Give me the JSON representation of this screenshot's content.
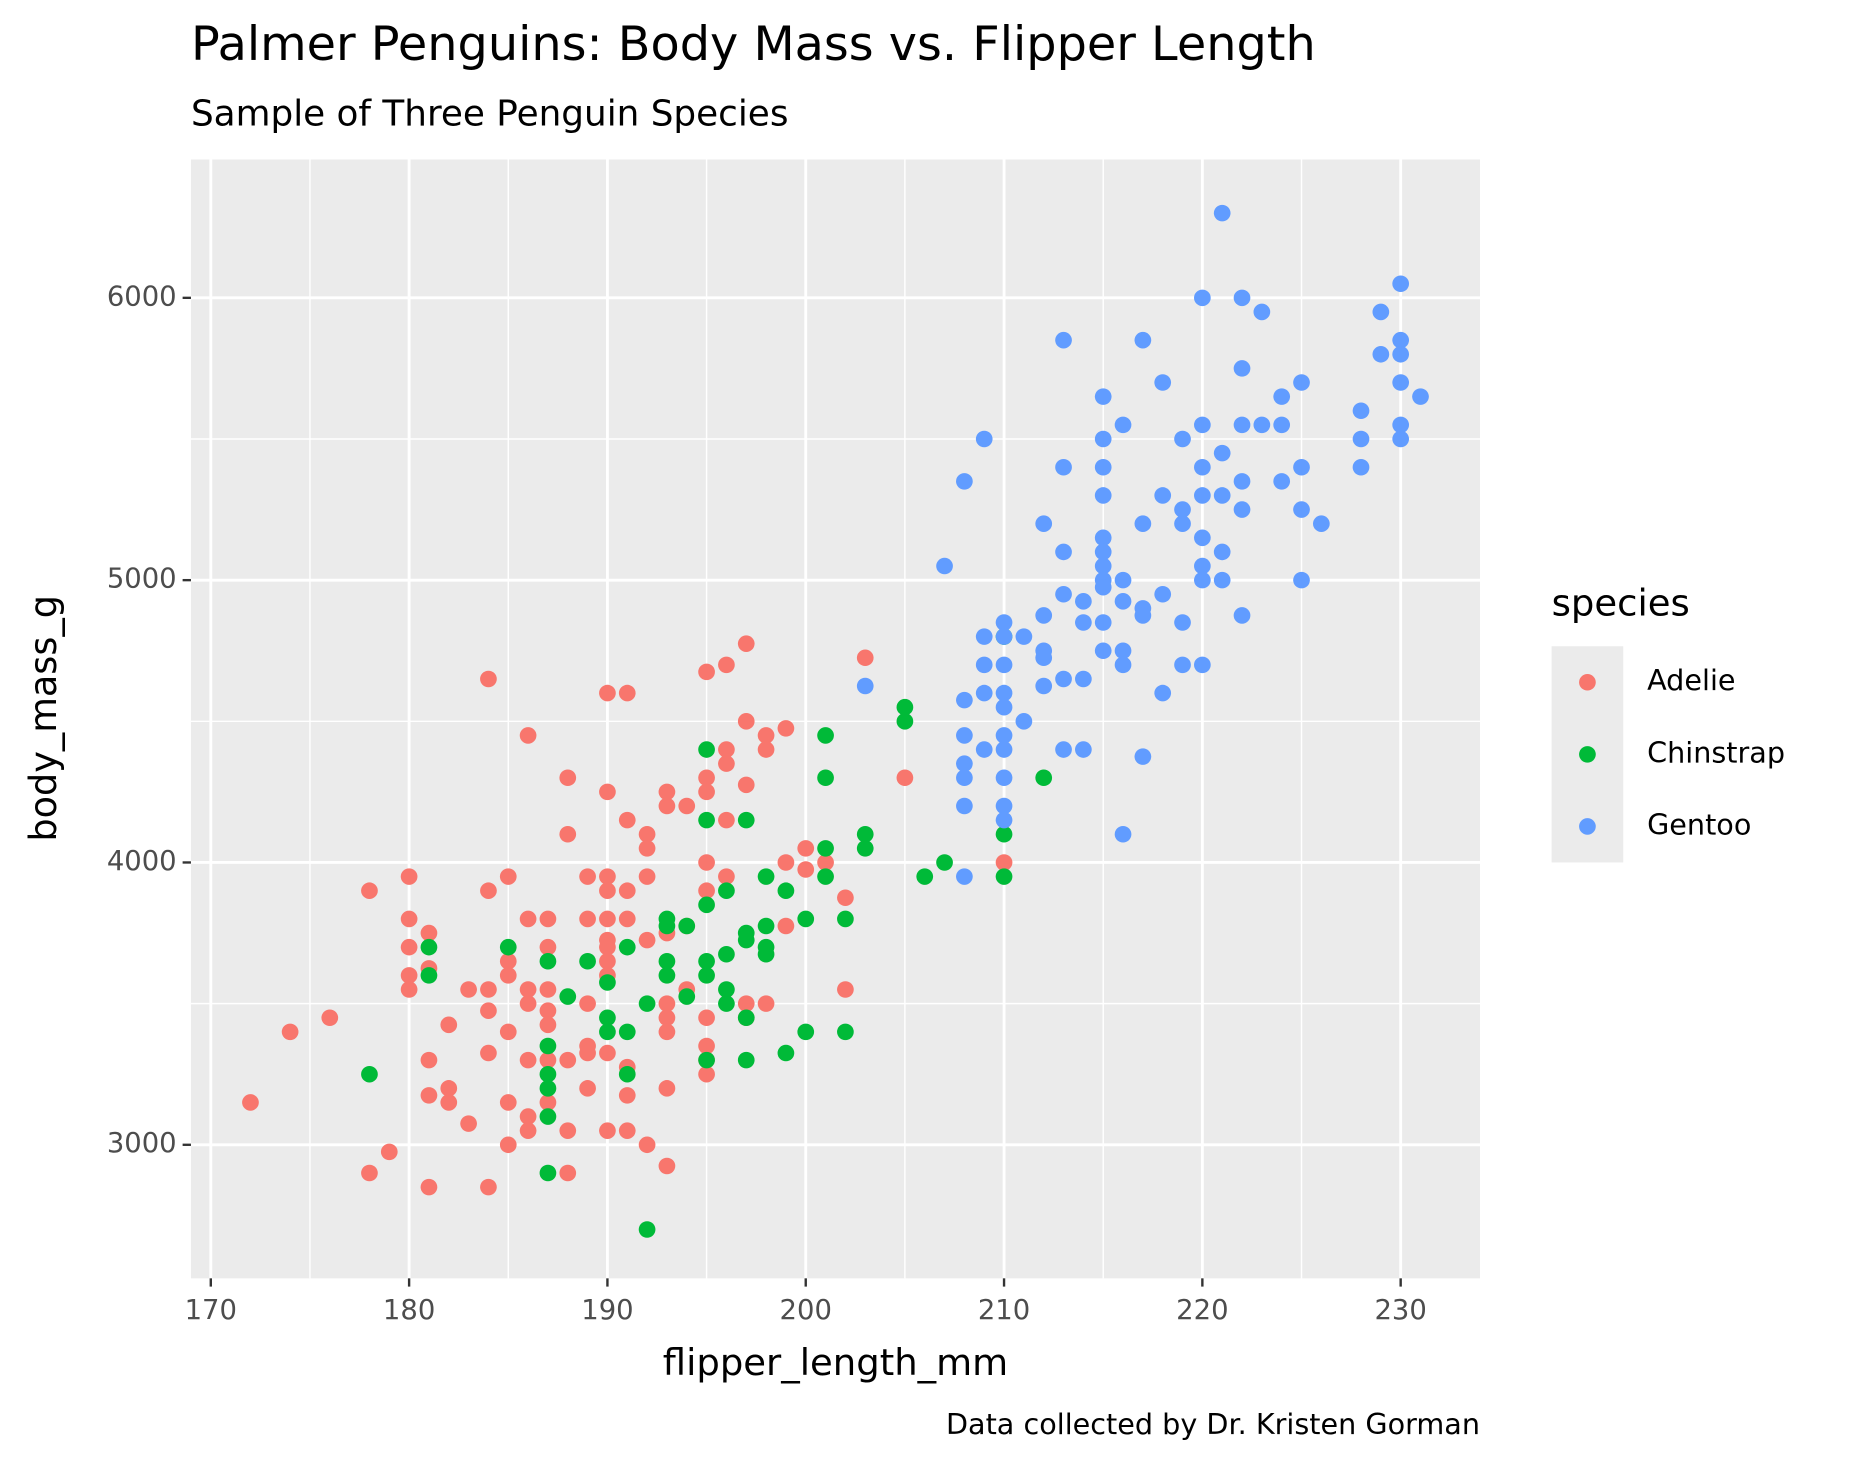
{
  "chart_data": {
    "type": "scatter",
    "title": "Palmer Penguins: Body Mass vs. Flipper Length",
    "subtitle": "Sample of Three Penguin Species",
    "x_label": "flipper_length_mm",
    "y_label": "body_mass_g",
    "caption": "Data collected by Dr. Kristen Gorman",
    "legend_title": "species",
    "legend_position": "right",
    "grid": true,
    "xlim": [
      169,
      234
    ],
    "ylim": [
      2527,
      6490
    ],
    "xticks": [
      170,
      180,
      190,
      200,
      210,
      220,
      230
    ],
    "yticks": [
      3000,
      4000,
      5000,
      6000
    ],
    "xminorticks": [
      175,
      185,
      195,
      205,
      215,
      225
    ],
    "yminorticks": [
      3500,
      4500,
      5500
    ],
    "series": [
      {
        "name": "Adelie",
        "color": "#f8766d",
        "x": [
          172,
          174,
          176,
          178,
          178,
          179,
          180,
          180,
          180,
          180,
          180,
          181,
          181,
          181,
          181,
          181,
          182,
          182,
          182,
          183,
          183,
          184,
          184,
          184,
          184,
          184,
          184,
          185,
          185,
          185,
          185,
          185,
          185,
          186,
          186,
          186,
          186,
          186,
          186,
          186,
          187,
          187,
          187,
          187,
          187,
          187,
          187,
          188,
          188,
          188,
          188,
          188,
          189,
          189,
          189,
          189,
          189,
          189,
          190,
          190,
          190,
          190,
          190,
          190,
          190,
          190,
          190,
          190,
          190,
          191,
          191,
          191,
          191,
          191,
          191,
          191,
          192,
          192,
          192,
          192,
          192,
          193,
          193,
          193,
          193,
          193,
          193,
          193,
          193,
          194,
          194,
          194,
          195,
          195,
          195,
          195,
          195,
          195,
          195,
          195,
          195,
          196,
          196,
          196,
          196,
          196,
          197,
          197,
          197,
          197,
          197,
          198,
          198,
          198,
          199,
          199,
          199,
          200,
          200,
          201,
          202,
          202,
          203,
          205,
          210
        ],
        "y": [
          3150,
          3400,
          3450,
          3900,
          2900,
          2975,
          3950,
          3800,
          3700,
          3600,
          3550,
          3750,
          3625,
          3300,
          3175,
          2850,
          3425,
          3200,
          3150,
          3550,
          3075,
          4650,
          3900,
          3550,
          3475,
          3325,
          2850,
          3950,
          3650,
          3600,
          3400,
          3150,
          3000,
          4450,
          3800,
          3550,
          3500,
          3300,
          3100,
          3050,
          3800,
          3700,
          3550,
          3475,
          3425,
          3300,
          3150,
          4300,
          4100,
          3300,
          3050,
          2900,
          3950,
          3800,
          3500,
          3350,
          3325,
          3200,
          4600,
          4250,
          3950,
          3900,
          3800,
          3725,
          3700,
          3650,
          3600,
          3325,
          3050,
          4600,
          4150,
          3900,
          3800,
          3275,
          3175,
          3050,
          4100,
          4050,
          3950,
          3725,
          3000,
          4250,
          4200,
          3750,
          3500,
          3450,
          3400,
          3200,
          2925,
          4200,
          3775,
          3550,
          4675,
          4300,
          4250,
          4000,
          3900,
          3450,
          3350,
          3300,
          3250,
          4700,
          4400,
          4350,
          4150,
          3950,
          4775,
          4500,
          4275,
          3500,
          3450,
          4450,
          4400,
          3500,
          4475,
          4000,
          3775,
          4050,
          3975,
          4000,
          3875,
          3550,
          4725,
          4300,
          4000
        ]
      },
      {
        "name": "Chinstrap",
        "color": "#00ba38",
        "x": [
          178,
          181,
          181,
          185,
          187,
          187,
          187,
          187,
          187,
          187,
          188,
          189,
          190,
          190,
          190,
          191,
          191,
          191,
          192,
          192,
          193,
          193,
          193,
          193,
          194,
          194,
          195,
          195,
          195,
          195,
          195,
          195,
          196,
          196,
          196,
          196,
          197,
          197,
          197,
          197,
          197,
          198,
          198,
          198,
          198,
          199,
          199,
          200,
          200,
          201,
          201,
          201,
          201,
          202,
          202,
          203,
          203,
          205,
          205,
          206,
          207,
          210,
          210,
          210,
          212
        ],
        "y": [
          3250,
          3700,
          3600,
          3700,
          3650,
          3350,
          3250,
          3200,
          3100,
          2900,
          3525,
          3650,
          3575,
          3450,
          3400,
          3700,
          3400,
          3250,
          3500,
          2700,
          3800,
          3775,
          3650,
          3600,
          3775,
          3525,
          4400,
          4150,
          3850,
          3650,
          3600,
          3300,
          3900,
          3675,
          3550,
          3500,
          4150,
          3750,
          3725,
          3450,
          3300,
          3950,
          3775,
          3700,
          3675,
          3900,
          3325,
          3800,
          3400,
          4450,
          4300,
          4050,
          3950,
          3800,
          3400,
          4100,
          4050,
          4550,
          4500,
          3950,
          4000,
          4800,
          4100,
          3950,
          4300
        ]
      },
      {
        "name": "Gentoo",
        "color": "#619cff",
        "x": [
          203,
          207,
          208,
          208,
          208,
          208,
          208,
          208,
          208,
          209,
          209,
          209,
          209,
          209,
          210,
          210,
          210,
          210,
          210,
          210,
          210,
          210,
          210,
          210,
          211,
          211,
          212,
          212,
          212,
          212,
          212,
          213,
          213,
          213,
          213,
          213,
          213,
          214,
          214,
          214,
          214,
          215,
          215,
          215,
          215,
          215,
          215,
          215,
          215,
          215,
          215,
          215,
          216,
          216,
          216,
          216,
          216,
          216,
          217,
          217,
          217,
          217,
          217,
          218,
          218,
          218,
          218,
          219,
          219,
          219,
          219,
          219,
          220,
          220,
          220,
          220,
          220,
          220,
          220,
          220,
          221,
          221,
          221,
          221,
          221,
          222,
          222,
          222,
          222,
          222,
          222,
          223,
          223,
          224,
          224,
          224,
          225,
          225,
          225,
          225,
          226,
          228,
          228,
          228,
          229,
          229,
          230,
          230,
          230,
          230,
          230,
          230,
          231
        ],
        "y": [
          4625,
          5050,
          5350,
          4575,
          4450,
          4350,
          4300,
          4200,
          3950,
          5500,
          4800,
          4700,
          4600,
          4400,
          4850,
          4800,
          4700,
          4600,
          4550,
          4450,
          4400,
          4300,
          4200,
          4150,
          4800,
          4500,
          5200,
          4875,
          4750,
          4725,
          4625,
          5850,
          5400,
          5100,
          4950,
          4650,
          4400,
          4925,
          4850,
          4650,
          4400,
          5650,
          5500,
          5400,
          5300,
          5150,
          5100,
          5050,
          5000,
          4975,
          4850,
          4750,
          5550,
          5000,
          4925,
          4750,
          4700,
          4100,
          5850,
          5200,
          4900,
          4875,
          4375,
          5700,
          5300,
          4950,
          4600,
          5500,
          5250,
          5200,
          4850,
          4700,
          6000,
          5550,
          5400,
          5300,
          5150,
          5050,
          5000,
          4700,
          6300,
          5450,
          5300,
          5100,
          5000,
          6000,
          5750,
          5550,
          5350,
          5250,
          4875,
          5950,
          5550,
          5650,
          5550,
          5350,
          5700,
          5400,
          5250,
          5000,
          5200,
          5600,
          5500,
          5400,
          5950,
          5800,
          6050,
          5850,
          5800,
          5700,
          5550,
          5500,
          5650
        ]
      }
    ]
  }
}
